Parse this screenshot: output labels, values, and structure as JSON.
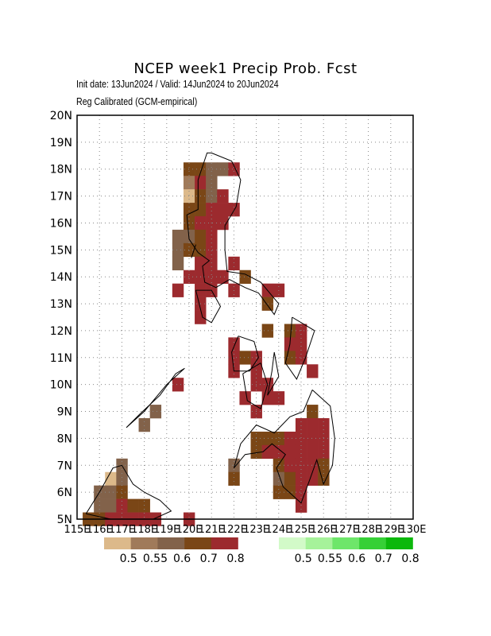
{
  "title": "NCEP week1 Precip Prob. Fcst",
  "init_line": "Init date: 13Jun2024 / Valid: 14Jun2024 to 20Jun2024",
  "method_line": "Reg Calibrated (GCM-empirical)",
  "lat_labels": [
    "5N",
    "6N",
    "7N",
    "8N",
    "9N",
    "10N",
    "11N",
    "12N",
    "13N",
    "14N",
    "15N",
    "16N",
    "17N",
    "18N",
    "19N",
    "20N"
  ],
  "lon_labels": [
    "115E",
    "116E",
    "117E",
    "118E",
    "119E",
    "120E",
    "121E",
    "122E",
    "123E",
    "124E",
    "125E",
    "126E",
    "127E",
    "128E",
    "129E",
    "130E"
  ],
  "legend_below": {
    "colors": [
      "#dcb98a",
      "#a07a5a",
      "#82624a",
      "#7a4616",
      "#9c2a2e"
    ],
    "labels": [
      "0.5",
      "0.55",
      "0.6",
      "0.7",
      "0.8"
    ]
  },
  "legend_above": {
    "colors": [
      "#d2fac8",
      "#a6f29a",
      "#6ee66a",
      "#36d036",
      "#0cb80c"
    ],
    "labels": [
      "0.5",
      "0.55",
      "0.6",
      "0.7",
      "0.8"
    ]
  },
  "chart_data": {
    "type": "heatmap",
    "title": "NCEP week1 Precip Prob. Fcst",
    "xlim": [
      115,
      130
    ],
    "ylim": [
      5,
      20
    ],
    "grid": true,
    "cell_size_deg": 0.5,
    "categories": [
      "below-0.5",
      "below-0.55",
      "below-0.6",
      "below-0.7",
      "below-0.8"
    ],
    "cells": [
      [
        120.0,
        18.0,
        "below-0.7"
      ],
      [
        120.5,
        18.0,
        "below-0.7"
      ],
      [
        121.0,
        18.0,
        "below-0.6"
      ],
      [
        121.5,
        18.0,
        "below-0.6"
      ],
      [
        122.0,
        18.0,
        "below-0.8"
      ],
      [
        120.0,
        17.5,
        "below-0.55"
      ],
      [
        120.5,
        17.5,
        "below-0.8"
      ],
      [
        121.0,
        17.5,
        "below-0.6"
      ],
      [
        120.0,
        17.0,
        "below-0.5"
      ],
      [
        120.5,
        17.0,
        "below-0.7"
      ],
      [
        121.0,
        17.0,
        "below-0.6"
      ],
      [
        121.5,
        17.0,
        "below-0.8"
      ],
      [
        120.0,
        16.5,
        "below-0.7"
      ],
      [
        120.5,
        16.5,
        "below-0.7"
      ],
      [
        121.0,
        16.5,
        "below-0.8"
      ],
      [
        121.5,
        16.5,
        "below-0.8"
      ],
      [
        122.0,
        16.5,
        "below-0.8"
      ],
      [
        120.0,
        16.0,
        "below-0.7"
      ],
      [
        120.5,
        16.0,
        "below-0.8"
      ],
      [
        121.0,
        16.0,
        "below-0.8"
      ],
      [
        121.5,
        16.0,
        "below-0.8"
      ],
      [
        119.5,
        15.5,
        "below-0.6"
      ],
      [
        120.0,
        15.5,
        "below-0.6"
      ],
      [
        120.5,
        15.5,
        "below-0.7"
      ],
      [
        121.0,
        15.5,
        "below-0.8"
      ],
      [
        119.5,
        15.0,
        "below-0.6"
      ],
      [
        120.0,
        15.0,
        "below-0.7"
      ],
      [
        120.5,
        15.0,
        "below-0.7"
      ],
      [
        121.0,
        15.0,
        "below-0.8"
      ],
      [
        119.5,
        14.5,
        "below-0.6"
      ],
      [
        120.5,
        14.5,
        "below-0.8"
      ],
      [
        121.0,
        14.5,
        "below-0.8"
      ],
      [
        122.0,
        14.5,
        "below-0.8"
      ],
      [
        120.0,
        14.0,
        "below-0.8"
      ],
      [
        120.5,
        14.0,
        "below-0.8"
      ],
      [
        121.0,
        14.0,
        "below-0.8"
      ],
      [
        121.5,
        14.0,
        "below-0.8"
      ],
      [
        122.5,
        14.0,
        "below-0.7"
      ],
      [
        119.5,
        13.5,
        "below-0.8"
      ],
      [
        120.5,
        13.5,
        "below-0.8"
      ],
      [
        121.0,
        13.5,
        "below-0.8"
      ],
      [
        122.0,
        13.5,
        "below-0.8"
      ],
      [
        123.5,
        13.5,
        "below-0.8"
      ],
      [
        124.0,
        13.5,
        "below-0.8"
      ],
      [
        120.5,
        13.0,
        "below-0.8"
      ],
      [
        123.5,
        13.0,
        "below-0.7"
      ],
      [
        120.5,
        12.5,
        "below-0.8"
      ],
      [
        123.5,
        12.0,
        "below-0.7"
      ],
      [
        124.5,
        12.0,
        "below-0.7"
      ],
      [
        125.0,
        12.0,
        "below-0.8"
      ],
      [
        122.0,
        11.5,
        "below-0.8"
      ],
      [
        124.5,
        11.5,
        "below-0.8"
      ],
      [
        125.0,
        11.5,
        "below-0.8"
      ],
      [
        122.0,
        11.0,
        "below-0.8"
      ],
      [
        122.5,
        11.0,
        "below-0.7"
      ],
      [
        123.0,
        11.0,
        "below-0.8"
      ],
      [
        124.5,
        11.0,
        "below-0.7"
      ],
      [
        125.0,
        11.0,
        "below-0.8"
      ],
      [
        122.0,
        10.5,
        "below-0.8"
      ],
      [
        123.0,
        10.5,
        "below-0.8"
      ],
      [
        125.5,
        10.5,
        "below-0.8"
      ],
      [
        119.5,
        10.0,
        "below-0.8"
      ],
      [
        123.0,
        10.0,
        "below-0.8"
      ],
      [
        123.5,
        10.0,
        "below-0.8"
      ],
      [
        122.5,
        9.5,
        "below-0.8"
      ],
      [
        123.5,
        9.5,
        "below-0.8"
      ],
      [
        124.0,
        9.5,
        "below-0.8"
      ],
      [
        118.5,
        9.0,
        "below-0.6"
      ],
      [
        123.0,
        9.0,
        "below-0.8"
      ],
      [
        125.5,
        9.0,
        "below-0.7"
      ],
      [
        118.0,
        8.5,
        "below-0.6"
      ],
      [
        125.0,
        8.5,
        "below-0.8"
      ],
      [
        125.5,
        8.5,
        "below-0.8"
      ],
      [
        126.0,
        8.5,
        "below-0.8"
      ],
      [
        123.0,
        8.0,
        "below-0.7"
      ],
      [
        123.5,
        8.0,
        "below-0.7"
      ],
      [
        124.0,
        8.0,
        "below-0.7"
      ],
      [
        124.5,
        8.0,
        "below-0.8"
      ],
      [
        125.0,
        8.0,
        "below-0.8"
      ],
      [
        125.5,
        8.0,
        "below-0.8"
      ],
      [
        126.0,
        8.0,
        "below-0.8"
      ],
      [
        123.0,
        7.5,
        "below-0.7"
      ],
      [
        123.5,
        7.5,
        "below-0.8"
      ],
      [
        124.0,
        7.5,
        "below-0.8"
      ],
      [
        124.5,
        7.5,
        "below-0.8"
      ],
      [
        125.0,
        7.5,
        "below-0.8"
      ],
      [
        125.5,
        7.5,
        "below-0.8"
      ],
      [
        126.0,
        7.5,
        "below-0.8"
      ],
      [
        122.0,
        7.0,
        "below-0.6"
      ],
      [
        124.0,
        7.0,
        "below-0.7"
      ],
      [
        124.5,
        7.0,
        "below-0.8"
      ],
      [
        125.0,
        7.0,
        "below-0.8"
      ],
      [
        125.5,
        7.0,
        "below-0.8"
      ],
      [
        126.0,
        7.0,
        "below-0.7"
      ],
      [
        117.0,
        7.0,
        "below-0.6"
      ],
      [
        122.0,
        6.5,
        "below-0.7"
      ],
      [
        124.0,
        6.5,
        "below-0.6"
      ],
      [
        124.5,
        6.5,
        "below-0.7"
      ],
      [
        125.0,
        6.5,
        "below-0.8"
      ],
      [
        125.5,
        6.5,
        "below-0.8"
      ],
      [
        126.0,
        6.5,
        "below-0.7"
      ],
      [
        116.5,
        6.5,
        "below-0.5"
      ],
      [
        117.0,
        6.5,
        "below-0.6"
      ],
      [
        124.0,
        6.0,
        "below-0.7"
      ],
      [
        124.5,
        6.0,
        "below-0.7"
      ],
      [
        125.0,
        6.0,
        "below-0.8"
      ],
      [
        116.0,
        6.0,
        "below-0.6"
      ],
      [
        116.5,
        6.0,
        "below-0.6"
      ],
      [
        117.0,
        6.0,
        "below-0.7"
      ],
      [
        116.0,
        5.5,
        "below-0.6"
      ],
      [
        116.5,
        5.5,
        "below-0.6"
      ],
      [
        117.0,
        5.5,
        "below-0.8"
      ],
      [
        117.5,
        5.5,
        "below-0.7"
      ],
      [
        118.0,
        5.5,
        "below-0.7"
      ],
      [
        125.0,
        5.5,
        "below-0.8"
      ],
      [
        115.5,
        5.0,
        "below-0.7"
      ],
      [
        116.0,
        5.0,
        "below-0.7"
      ],
      [
        116.5,
        5.0,
        "below-0.8"
      ],
      [
        117.0,
        5.0,
        "below-0.8"
      ],
      [
        117.5,
        5.0,
        "below-0.8"
      ],
      [
        118.0,
        5.0,
        "below-0.8"
      ],
      [
        118.5,
        5.0,
        "below-0.8"
      ],
      [
        120.0,
        5.0,
        "below-0.8"
      ]
    ]
  }
}
